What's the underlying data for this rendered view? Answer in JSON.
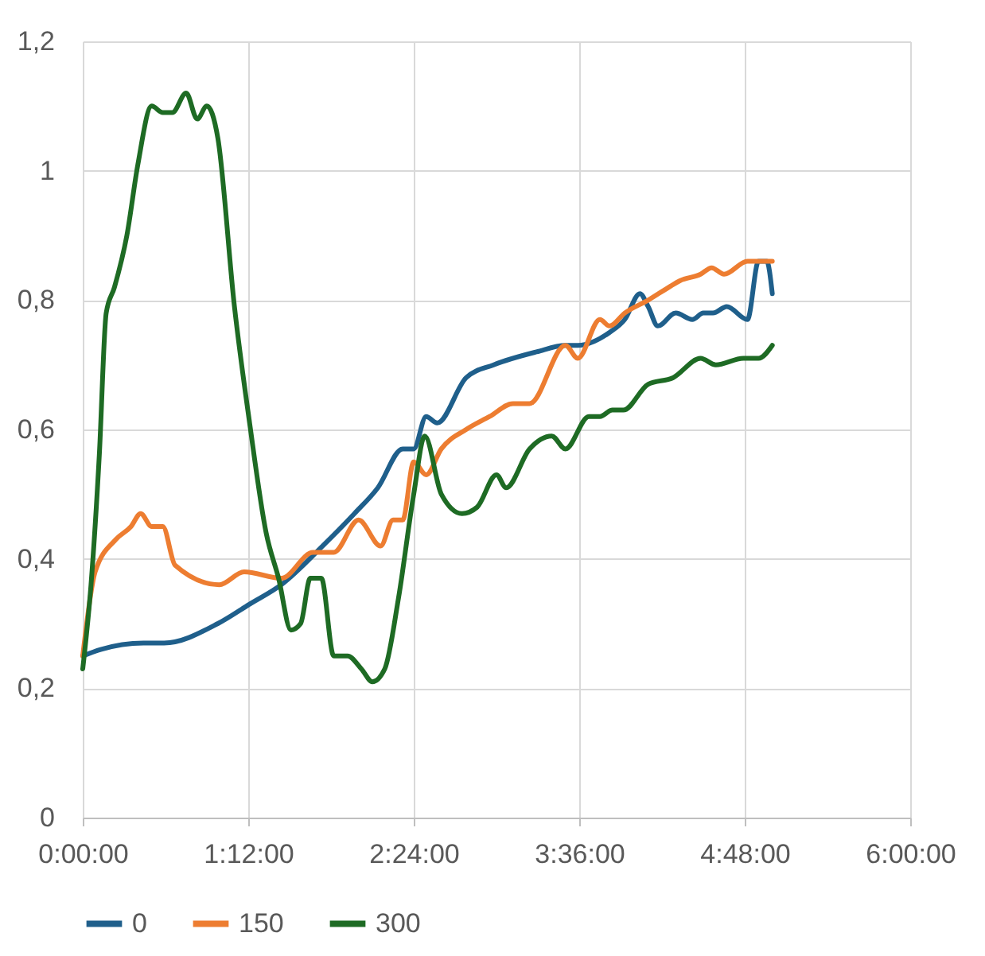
{
  "chart_data": {
    "type": "line",
    "xlim": [
      0,
      6
    ],
    "ylim": [
      0,
      1.2
    ],
    "xticks": [
      {
        "value": 0,
        "label": "0:00:00"
      },
      {
        "value": 1.2,
        "label": "1:12:00"
      },
      {
        "value": 2.4,
        "label": "2:24:00"
      },
      {
        "value": 3.6,
        "label": "3:36:00"
      },
      {
        "value": 4.8,
        "label": "4:48:00"
      },
      {
        "value": 6,
        "label": "6:00:00"
      }
    ],
    "yticks": [
      0,
      {
        "value": 0.2,
        "label": "0,2"
      },
      {
        "value": 0.4,
        "label": "0,4"
      },
      {
        "value": 0.6,
        "label": "0,6"
      },
      {
        "value": 0.8,
        "label": "0,8"
      },
      1,
      {
        "value": 1.2,
        "label": "1,2"
      }
    ],
    "grid": true,
    "legend": "bottom",
    "series": [
      {
        "name": "0",
        "color": "#1f5f8b",
        "x": [
          0,
          0.13,
          0.44,
          0.59,
          0.98,
          1.21,
          1.44,
          1.74,
          1.97,
          2.14,
          2.32,
          2.4,
          2.49,
          2.57,
          2.78,
          2.98,
          3.29,
          3.5,
          3.59,
          3.82,
          3.93,
          4.04,
          4.1,
          4.17,
          4.3,
          4.42,
          4.5,
          4.57,
          4.67,
          4.82,
          4.9,
          4.96,
          5
        ],
        "values": [
          0.25,
          0.26,
          0.27,
          0.27,
          0.3,
          0.33,
          0.36,
          0.42,
          0.47,
          0.51,
          0.57,
          0.57,
          0.62,
          0.61,
          0.68,
          0.7,
          0.72,
          0.73,
          0.73,
          0.75,
          0.77,
          0.81,
          0.79,
          0.76,
          0.78,
          0.77,
          0.78,
          0.78,
          0.79,
          0.77,
          0.86,
          0.86,
          0.81
        ]
      },
      {
        "name": "150",
        "color": "#ed7d31",
        "x": [
          0,
          0.09,
          0.24,
          0.35,
          0.42,
          0.5,
          0.58,
          0.67,
          0.99,
          1.17,
          1.44,
          1.67,
          1.82,
          2,
          2.16,
          2.25,
          2.32,
          2.4,
          2.49,
          2.6,
          2.78,
          2.95,
          3.12,
          3.24,
          3.5,
          3.59,
          3.75,
          3.82,
          3.93,
          4.1,
          4.25,
          4.33,
          4.48,
          4.56,
          4.65,
          4.82,
          5
        ],
        "values": [
          0.25,
          0.38,
          0.43,
          0.45,
          0.47,
          0.45,
          0.45,
          0.39,
          0.36,
          0.38,
          0.37,
          0.41,
          0.41,
          0.46,
          0.42,
          0.46,
          0.46,
          0.55,
          0.53,
          0.57,
          0.6,
          0.62,
          0.64,
          0.64,
          0.73,
          0.71,
          0.77,
          0.76,
          0.78,
          0.8,
          0.82,
          0.83,
          0.84,
          0.85,
          0.84,
          0.86,
          0.86
        ]
      },
      {
        "name": "300",
        "color": "#1e6b24",
        "x": [
          0,
          0.06,
          0.12,
          0.17,
          0.23,
          0.32,
          0.4,
          0.5,
          0.58,
          0.65,
          0.75,
          0.83,
          0.9,
          0.98,
          1.1,
          1.21,
          1.33,
          1.42,
          1.51,
          1.58,
          1.65,
          1.73,
          1.82,
          1.92,
          2.02,
          2.1,
          2.19,
          2.29,
          2.4,
          2.48,
          2.6,
          2.75,
          2.86,
          3,
          3.07,
          3.24,
          3.4,
          3.5,
          3.67,
          3.75,
          3.84,
          3.92,
          4.1,
          4.28,
          4.48,
          4.59,
          4.79,
          4.9,
          5
        ],
        "values": [
          0.23,
          0.36,
          0.56,
          0.78,
          0.82,
          0.9,
          1.01,
          1.1,
          1.09,
          1.09,
          1.12,
          1.08,
          1.1,
          1.05,
          0.79,
          0.61,
          0.44,
          0.37,
          0.29,
          0.3,
          0.37,
          0.37,
          0.25,
          0.25,
          0.23,
          0.21,
          0.23,
          0.34,
          0.5,
          0.59,
          0.5,
          0.47,
          0.48,
          0.53,
          0.51,
          0.57,
          0.59,
          0.57,
          0.62,
          0.62,
          0.63,
          0.63,
          0.67,
          0.68,
          0.71,
          0.7,
          0.71,
          0.71,
          0.73
        ]
      }
    ]
  }
}
